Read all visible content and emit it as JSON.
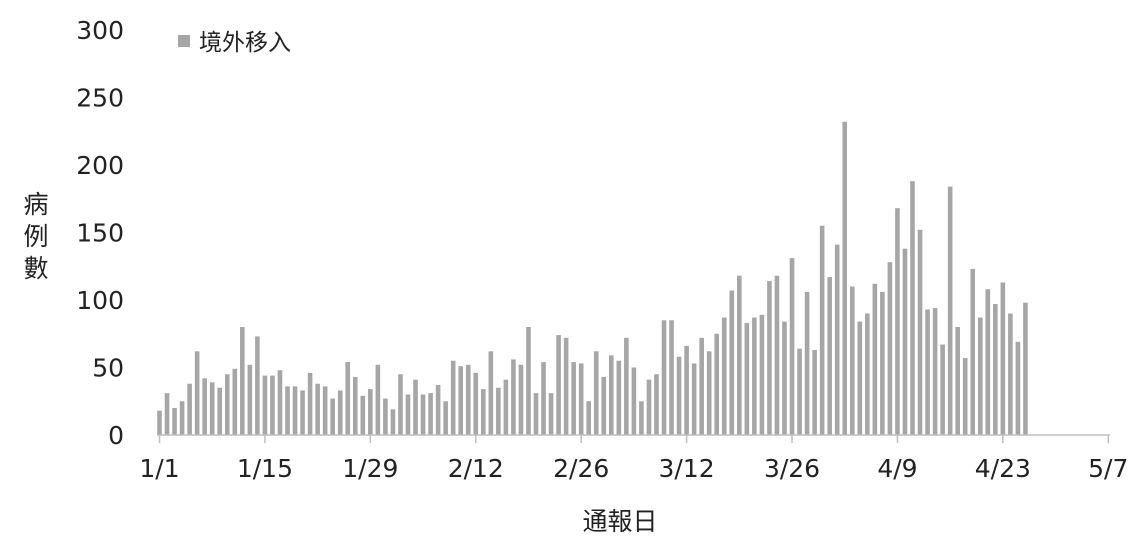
{
  "chart_data": {
    "type": "bar",
    "title": "",
    "xlabel": "通報日",
    "ylabel": "病例數",
    "ylim": [
      0,
      300
    ],
    "yticks": [
      0,
      50,
      100,
      150,
      200,
      250,
      300
    ],
    "grid": false,
    "legend_position": "top-left",
    "x_start": "1/1",
    "x_tick_labels": [
      "1/1",
      "1/15",
      "1/29",
      "2/12",
      "2/26",
      "3/12",
      "3/26",
      "4/9",
      "4/23",
      "5/7"
    ],
    "x_tick_day_index": [
      0,
      14,
      28,
      42,
      56,
      70,
      84,
      98,
      112,
      126
    ],
    "series": [
      {
        "name": "境外移入",
        "color": "#a6a6a6",
        "values": [
          18,
          31,
          20,
          25,
          38,
          62,
          42,
          39,
          35,
          45,
          49,
          80,
          52,
          73,
          44,
          44,
          48,
          36,
          36,
          33,
          46,
          38,
          36,
          27,
          33,
          54,
          43,
          29,
          34,
          52,
          27,
          19,
          45,
          30,
          41,
          30,
          31,
          37,
          25,
          55,
          51,
          52,
          46,
          34,
          62,
          35,
          41,
          56,
          52,
          80,
          31,
          54,
          31,
          74,
          72,
          54,
          53,
          25,
          62,
          43,
          59,
          55,
          72,
          50,
          25,
          41,
          45,
          85,
          85,
          58,
          66,
          53,
          72,
          62,
          75,
          87,
          107,
          118,
          83,
          87,
          89,
          114,
          118,
          84,
          131,
          64,
          106,
          63,
          155,
          117,
          141,
          232,
          110,
          84,
          90,
          112,
          106,
          128,
          168,
          138,
          188,
          152,
          93,
          94,
          67,
          184,
          80,
          57,
          123,
          87,
          108,
          97,
          113,
          90,
          69,
          98
        ]
      }
    ]
  }
}
